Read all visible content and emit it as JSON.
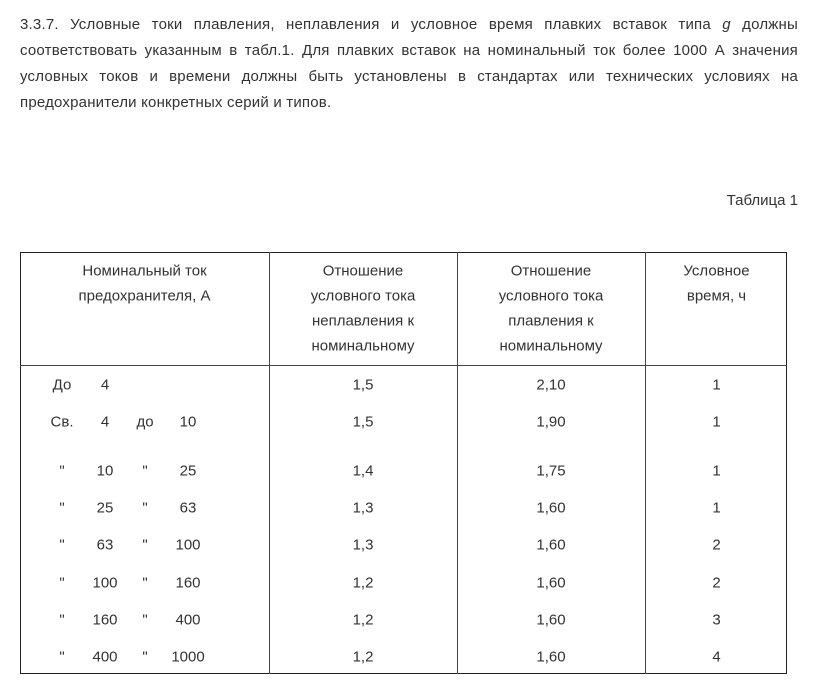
{
  "paragraph": {
    "before": "3.3.7. Условные токи плавления, неплавления и условное время плавких вставок типа",
    "italic": "g",
    "after": "должны соответствовать указанным в табл.1. Для плавких вставок на номинальный ток более 1000 А значения условных токов и времени должны быть установлены в стандартах или технических условиях на предохранители конкретных серий и типов."
  },
  "table": {
    "caption": "Таблица 1",
    "header": [
      [
        "Номинальный ток",
        "предохранителя, А"
      ],
      [
        "Отношение",
        "условного тока",
        "неплавления к",
        "номинальному"
      ],
      [
        "Отношение",
        "условного тока",
        "плавления к",
        "номинальному"
      ],
      [
        "Условное",
        "время, ч"
      ]
    ],
    "rows": [
      {
        "range": [
          "До",
          "4"
        ],
        "cells": [
          "1,5",
          "2,10",
          "1"
        ]
      },
      {
        "range": [
          "Св.",
          "4",
          "до",
          "10"
        ],
        "cells": [
          "1,5",
          "1,90",
          "1"
        ]
      },
      {
        "range": [
          "\"",
          "10",
          "\"",
          "25"
        ],
        "cells": [
          "1,4",
          "1,75",
          "1"
        ]
      },
      {
        "range": [
          "\"",
          "25",
          "\"",
          "63"
        ],
        "cells": [
          "1,3",
          "1,60",
          "1"
        ]
      },
      {
        "range": [
          "\"",
          "63",
          "\"",
          "100"
        ],
        "cells": [
          "1,3",
          "1,60",
          "2"
        ]
      },
      {
        "range": [
          "\"",
          "100",
          "\"",
          "160"
        ],
        "cells": [
          "1,2",
          "1,60",
          "2"
        ]
      },
      {
        "range": [
          "\"",
          "160",
          "\"",
          "400"
        ],
        "cells": [
          "1,2",
          "1,60",
          "3"
        ]
      },
      {
        "range": [
          "\"",
          "400",
          "\"",
          "1000"
        ],
        "cells": [
          "1,2",
          "1,60",
          "4"
        ]
      }
    ]
  }
}
